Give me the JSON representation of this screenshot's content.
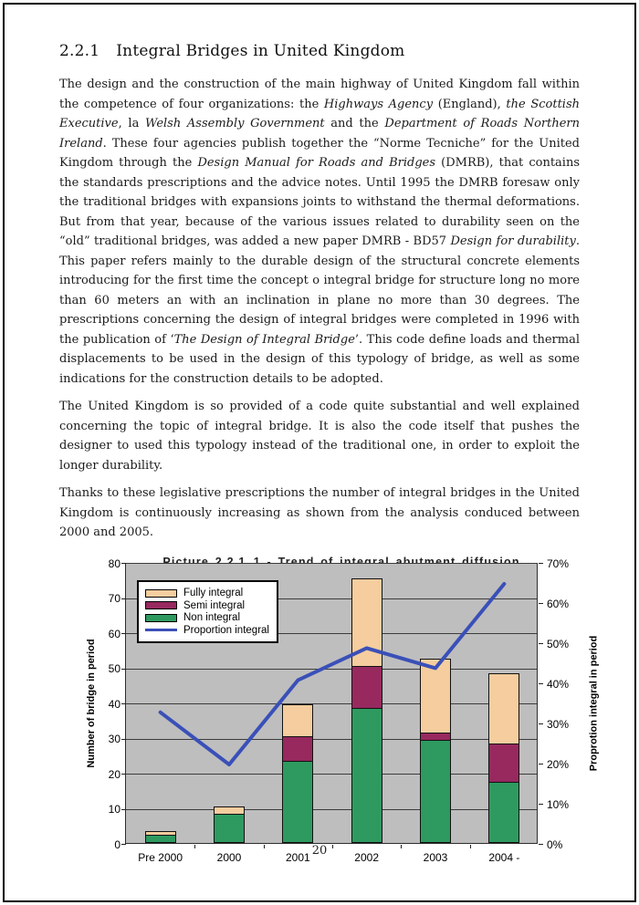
{
  "heading": {
    "number": "2.2.1",
    "title": "Integral Bridges in United Kingdom"
  },
  "paragraphs": [
    {
      "runs": [
        {
          "text": "The design and the construction of the main highway of United Kingdom fall within the competence of four organizations: the ",
          "italic": false
        },
        {
          "text": "Highways Agency",
          "italic": true
        },
        {
          "text": " (England), ",
          "italic": false
        },
        {
          "text": "the Scottish Executive",
          "italic": true
        },
        {
          "text": ", la ",
          "italic": false
        },
        {
          "text": "Welsh Assembly Government",
          "italic": true
        },
        {
          "text": " and the ",
          "italic": false
        },
        {
          "text": "Department of Roads Northern Ireland",
          "italic": true
        },
        {
          "text": ". These four agencies publish together the “Norme Tecniche” for the United Kingdom through the ",
          "italic": false
        },
        {
          "text": "Design Manual for Roads and Bridges",
          "italic": true
        },
        {
          "text": " (DMRB), that contains the standards prescriptions and the advice notes. Until 1995 the DMRB foresaw only the traditional bridges with expansions joints to withstand the thermal deformations. But from that year, because of the various issues related to durability seen on the “old” traditional bridges, was added a new paper DMRB - BD57 ",
          "italic": false
        },
        {
          "text": "Design for durability",
          "italic": true
        },
        {
          "text": ". This paper refers mainly to the durable design of the structural concrete elements introducing for the first time the concept o integral bridge for structure long no more than 60 meters an with an inclination in plane no more than 30 degrees. The prescriptions concerning the design of integral bridges were completed in 1996 with the publication of ‘",
          "italic": false
        },
        {
          "text": "The Design of Integral Bridge",
          "italic": true
        },
        {
          "text": "’. This code define loads and thermal displacements to be used in the design of this typology of bridge, as well as some indications for the construction details to be adopted.",
          "italic": false
        }
      ]
    },
    {
      "runs": [
        {
          "text": "The United Kingdom is so provided of a code quite substantial and well explained concerning the topic of integral bridge. It is also the code itself that pushes the designer to used this typology instead of the traditional one, in order to exploit the longer durability.",
          "italic": false
        }
      ]
    },
    {
      "runs": [
        {
          "text": "Thanks to these legislative prescriptions the number of integral bridges in the United Kingdom is continuously increasing as shown from the analysis conduced between 2000 and 2005.",
          "italic": false
        }
      ]
    }
  ],
  "chart_data": {
    "type": "bar",
    "subtype": "stacked-bar-with-line",
    "categories": [
      "Pre 2000",
      "2000",
      "2001",
      "2002",
      "2003",
      "2004 -"
    ],
    "series": [
      {
        "name": "Non integral",
        "type": "bar",
        "color": "#2e9a60",
        "values": [
          2,
          8,
          23,
          38,
          29,
          17
        ]
      },
      {
        "name": "Semi integral",
        "type": "bar",
        "color": "#97295f",
        "values": [
          0,
          0,
          7,
          12,
          2,
          11
        ]
      },
      {
        "name": "Fully integral",
        "type": "bar",
        "color": "#f5cd9e",
        "values": [
          1,
          2,
          9,
          25,
          21,
          20
        ]
      },
      {
        "name": "Proportion integral",
        "type": "line",
        "color": "#3a50b8",
        "axis": "right",
        "values": [
          33,
          20,
          41,
          49,
          44,
          65
        ]
      }
    ],
    "bar_totals": [
      3,
      10,
      39,
      75,
      52,
      48
    ],
    "left_axis": {
      "label": "Number of bridge in period",
      "min": 0,
      "max": 80,
      "step": 10
    },
    "right_axis": {
      "label": "Proprotion integral in period",
      "min": 0,
      "max": 70,
      "step": 10,
      "unit": "%"
    },
    "legend_order": [
      "Fully integral",
      "Semi integral",
      "Non integral",
      "Proportion integral"
    ],
    "legend_position": "top-left-inside",
    "grid": true,
    "plot_bg": "#bebebe"
  },
  "figure": {
    "caption": "Picture 2.2.1_1 - Trend of integral abutment diffusion"
  },
  "page": {
    "number": "20"
  }
}
